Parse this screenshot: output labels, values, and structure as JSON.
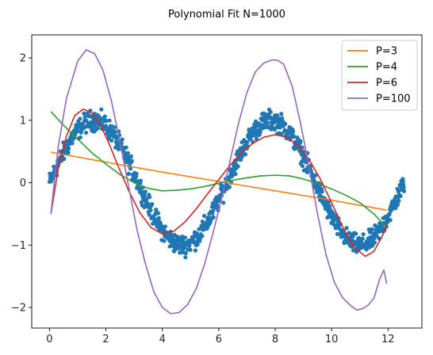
{
  "chart_data": {
    "type": "line",
    "title": "Polynomial Fit N=1000",
    "xlabel": "",
    "ylabel": "",
    "xlim": [
      -0.63,
      13.2
    ],
    "ylim": [
      -2.33,
      2.37
    ],
    "x_ticks": [
      0,
      2,
      4,
      6,
      8,
      10,
      12
    ],
    "y_ticks": [
      -2,
      -1,
      0,
      1,
      2
    ],
    "x_tick_labels": [
      "0",
      "2",
      "4",
      "6",
      "8",
      "10",
      "12"
    ],
    "y_tick_labels": [
      "−2",
      "−1",
      "0",
      "1",
      "2"
    ],
    "grid": false,
    "legend_position": "top-right",
    "scatter": {
      "color": "#1f77b4",
      "n_points": 1000,
      "x_range": [
        0.0,
        12.57
      ],
      "noise_amplitude": 0.13,
      "pattern": "sin(x)"
    },
    "series": [
      {
        "name": "P=3",
        "color": "#ff7f0e",
        "x": [
          0.05,
          2,
          4,
          6,
          8,
          10,
          11.95
        ],
        "y": [
          0.49,
          0.33,
          0.17,
          0.02,
          -0.13,
          -0.28,
          -0.44
        ]
      },
      {
        "name": "P=4",
        "color": "#2ca02c",
        "x": [
          0.05,
          0.5,
          1,
          1.5,
          2,
          2.5,
          3,
          3.5,
          4,
          4.5,
          5,
          5.5,
          6,
          6.5,
          7,
          7.5,
          8,
          8.5,
          9,
          9.5,
          10,
          10.5,
          11,
          11.5,
          11.95
        ],
        "y": [
          1.14,
          0.92,
          0.7,
          0.48,
          0.3,
          0.13,
          0.0,
          -0.09,
          -0.13,
          -0.12,
          -0.1,
          -0.06,
          -0.01,
          0.04,
          0.08,
          0.11,
          0.12,
          0.11,
          0.06,
          -0.01,
          -0.1,
          -0.2,
          -0.32,
          -0.5,
          -0.72
        ]
      },
      {
        "name": "P=6",
        "color": "#d62728",
        "x": [
          0.05,
          0.3,
          0.6,
          0.9,
          1.2,
          1.5,
          1.8,
          2.1,
          2.4,
          2.8,
          3.2,
          3.6,
          4.0,
          4.4,
          4.8,
          5.2,
          5.6,
          6.0,
          6.4,
          6.8,
          7.2,
          7.6,
          8.0,
          8.4,
          8.8,
          9.2,
          9.6,
          10.0,
          10.4,
          10.8,
          11.2,
          11.5,
          11.8,
          11.95
        ],
        "y": [
          -0.5,
          0.2,
          0.75,
          1.08,
          1.18,
          1.12,
          0.93,
          0.64,
          0.3,
          -0.12,
          -0.48,
          -0.72,
          -0.82,
          -0.78,
          -0.63,
          -0.42,
          -0.18,
          0.05,
          0.28,
          0.48,
          0.63,
          0.73,
          0.77,
          0.73,
          0.6,
          0.37,
          0.06,
          -0.32,
          -0.72,
          -1.04,
          -1.18,
          -1.1,
          -0.85,
          -0.68
        ]
      },
      {
        "name": "P=100",
        "color": "#9467bd",
        "x": [
          0.05,
          0.3,
          0.6,
          1.0,
          1.3,
          1.6,
          1.9,
          2.2,
          2.5,
          2.8,
          3.1,
          3.4,
          3.7,
          4.0,
          4.3,
          4.6,
          4.9,
          5.2,
          5.5,
          5.8,
          6.1,
          6.4,
          6.7,
          7.0,
          7.3,
          7.6,
          7.9,
          8.1,
          8.3,
          8.6,
          8.9,
          9.2,
          9.5,
          9.8,
          10.1,
          10.4,
          10.7,
          10.9,
          11.1,
          11.3,
          11.5,
          11.6,
          11.7,
          11.8,
          11.85,
          11.9,
          11.95
        ],
        "y": [
          -0.5,
          0.55,
          1.35,
          1.95,
          2.13,
          2.07,
          1.8,
          1.3,
          0.65,
          -0.05,
          -0.75,
          -1.3,
          -1.75,
          -2.0,
          -2.1,
          -2.08,
          -1.95,
          -1.7,
          -1.3,
          -0.8,
          -0.25,
          0.35,
          0.95,
          1.45,
          1.78,
          1.92,
          1.97,
          1.96,
          1.9,
          1.55,
          0.95,
          0.25,
          -0.5,
          -1.15,
          -1.6,
          -1.85,
          -1.98,
          -2.04,
          -2.02,
          -1.96,
          -1.85,
          -1.7,
          -1.55,
          -1.45,
          -1.4,
          -1.5,
          -1.62
        ]
      }
    ]
  }
}
